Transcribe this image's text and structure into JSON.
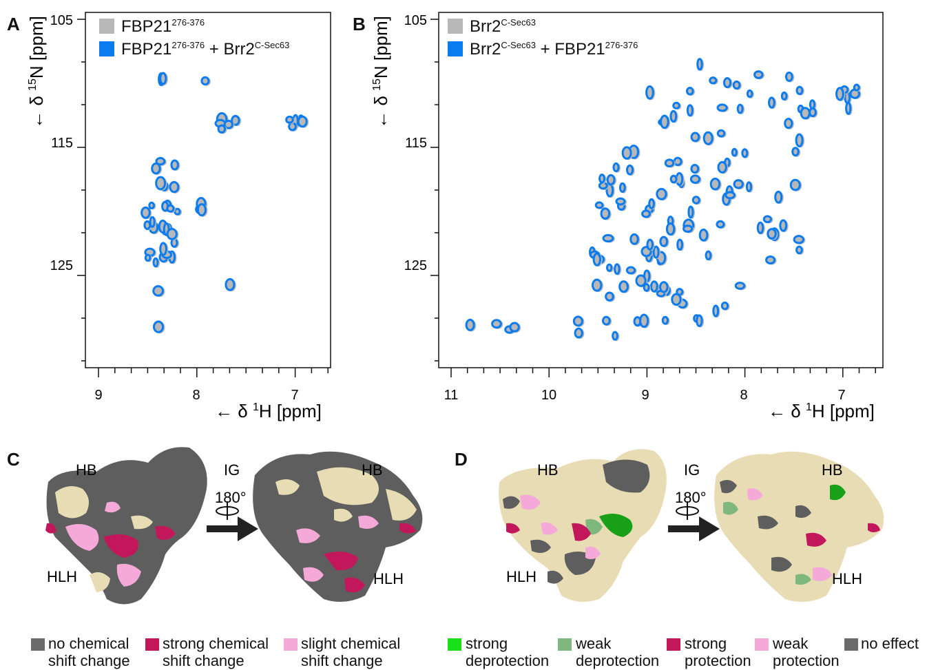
{
  "panel_A": {
    "letter": "A",
    "legend": [
      {
        "text": "FBP21",
        "sup": "276-376",
        "color": "#b8b8b8"
      },
      {
        "text": "FBP21",
        "sup": "276-376",
        "text2": " + Brr2",
        "sup2": "C-Sec63",
        "color": "#0a7cf0"
      }
    ],
    "y_axis": {
      "label": "δ ",
      "sup": "15",
      "label2": "N [ppm]",
      "ticks": [
        "105",
        "115",
        "125"
      ]
    },
    "x_axis": {
      "label": "δ ",
      "sup": "1",
      "label2": "H [ppm]",
      "ticks": [
        "9",
        "8",
        "7"
      ]
    }
  },
  "panel_B": {
    "letter": "B",
    "legend": [
      {
        "text": "Brr2",
        "sup": "C-Sec63",
        "color": "#b8b8b8"
      },
      {
        "text": "Brr2",
        "sup": "C-Sec63",
        "text2": " + FBP21",
        "sup2": "276-376",
        "color": "#0a7cf0"
      }
    ],
    "y_axis": {
      "label": "δ ",
      "sup": "15",
      "label2": "N [ppm]",
      "ticks": [
        "105",
        "115",
        "125"
      ]
    },
    "x_axis": {
      "label": "δ ",
      "sup": "1",
      "label2": "H [ppm]",
      "ticks": [
        "11",
        "10",
        "9",
        "8",
        "7"
      ]
    }
  },
  "panel_C": {
    "letter": "C",
    "labels": {
      "hb": "HB",
      "hlh": "HLH",
      "ig": "IG",
      "rotation": "180°",
      "hb2": "HB",
      "hlh2": "HLH"
    },
    "legend": [
      {
        "line1": "no chemical",
        "line2": "shift change",
        "color": "#6b6b6b"
      },
      {
        "line1": "strong chemical",
        "line2": "shift change",
        "color": "#c2185b"
      },
      {
        "line1": "slight chemical",
        "line2": "shift change",
        "color": "#f4a9d8"
      }
    ]
  },
  "panel_D": {
    "letter": "D",
    "labels": {
      "hb": "HB",
      "hlh": "HLH",
      "ig": "IG",
      "rotation": "180°",
      "hb2": "HB",
      "hlh2": "HLH"
    },
    "legend": [
      {
        "line1": "strong",
        "line2": "deprotection",
        "color": "#19e019"
      },
      {
        "line1": "weak",
        "line2": "deprotection",
        "color": "#7fb87f"
      },
      {
        "line1": "strong",
        "line2": "protection",
        "color": "#c2185b"
      },
      {
        "line1": "weak",
        "line2": "protection",
        "color": "#f4a9d8"
      },
      {
        "line1": "no effect",
        "line2": "",
        "color": "#6b6b6b"
      }
    ]
  },
  "colors": {
    "gray_peak": "#b8b8b8",
    "blue_peak": "#0a7cf0",
    "surface_tan": "#e8dcb5",
    "surface_gray": "#6b6b6b"
  }
}
